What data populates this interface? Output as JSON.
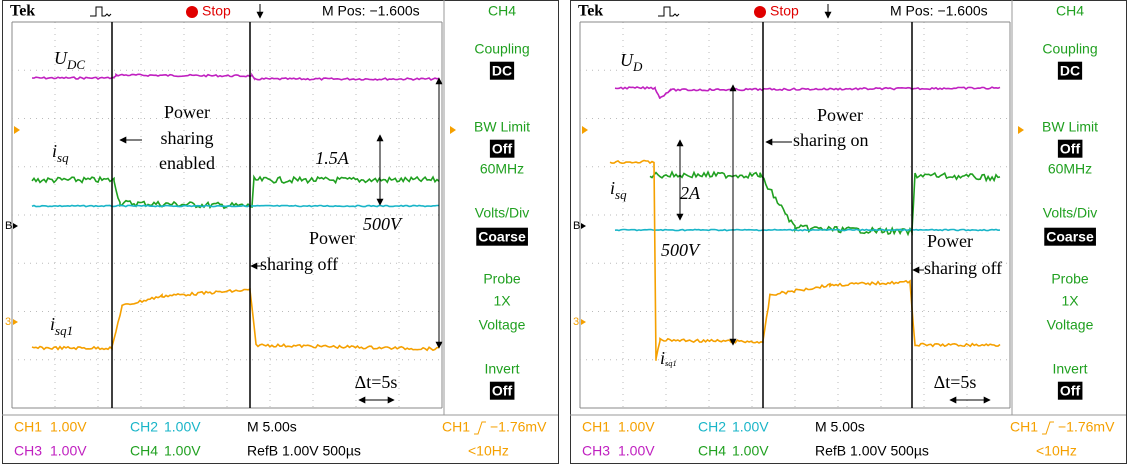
{
  "panels": [
    {
      "header": {
        "brand": "Tek",
        "status": "Stop",
        "position": "M Pos: −1.600s",
        "channel": "CH4"
      },
      "menu": [
        {
          "text": "Coupling"
        },
        {
          "text": "DC",
          "boxed": true
        },
        {
          "text": "BW Limit"
        },
        {
          "text": "Off",
          "boxed": true
        },
        {
          "text": "60MHz"
        },
        {
          "text": "Volts/Div"
        },
        {
          "text": "Coarse",
          "boxed": true
        },
        {
          "text": "Probe"
        },
        {
          "text": "1X"
        },
        {
          "text": "Voltage"
        },
        {
          "text": "Invert"
        },
        {
          "text": "Off",
          "boxed": true
        }
      ],
      "markers": [
        "B",
        "3"
      ],
      "readouts": [
        {
          "text": "CH1",
          "color": "#f5a000"
        },
        {
          "text": "1.00V",
          "color": "#f5a000"
        },
        {
          "text": "CH2",
          "color": "#19b5c8"
        },
        {
          "text": "1.00V",
          "color": "#19b5c8"
        },
        {
          "text": "M 5.00s",
          "color": "#000000"
        },
        {
          "text": "CH1",
          "color": "#f5a000"
        },
        {
          "text": "−1.76mV",
          "color": "#f5a000"
        },
        {
          "text": "CH3",
          "color": "#c020c0"
        },
        {
          "text": "1.00V",
          "color": "#c020c0"
        },
        {
          "text": "CH4",
          "color": "#20a020"
        },
        {
          "text": "1.00V",
          "color": "#20a020"
        },
        {
          "text": "RefB 1.00V 500µs",
          "color": "#000000"
        },
        {
          "text": "<10Hz",
          "color": "#f5a000"
        }
      ],
      "annotations": [
        {
          "main": "U",
          "sub": "DC"
        },
        {
          "lines": [
            "Power",
            "sharing",
            "enabled"
          ]
        },
        {
          "main": "i",
          "sub": "sq"
        },
        {
          "lines": [
            "1.5A"
          ]
        },
        {
          "lines": [
            "500V"
          ]
        },
        {
          "lines": [
            "Power",
            "sharing off"
          ]
        },
        {
          "main": "i",
          "sub": "sq1"
        },
        {
          "lines": [
            "Δt=5s"
          ]
        }
      ]
    },
    {
      "header": {
        "brand": "Tek",
        "status": "Stop",
        "position": "M Pos: −1.600s",
        "channel": "CH4"
      },
      "menu": [
        {
          "text": "Coupling"
        },
        {
          "text": "DC",
          "boxed": true
        },
        {
          "text": "BW Limit"
        },
        {
          "text": "Off",
          "boxed": true
        },
        {
          "text": "60MHz"
        },
        {
          "text": "Volts/Div"
        },
        {
          "text": "Coarse",
          "boxed": true
        },
        {
          "text": "Probe"
        },
        {
          "text": "1X"
        },
        {
          "text": "Voltage"
        },
        {
          "text": "Invert"
        },
        {
          "text": "Off",
          "boxed": true
        }
      ],
      "markers": [
        "B",
        "3"
      ],
      "readouts": [
        {
          "text": "CH1",
          "color": "#f5a000"
        },
        {
          "text": "1.00V",
          "color": "#f5a000"
        },
        {
          "text": "CH2",
          "color": "#19b5c8"
        },
        {
          "text": "1.00V",
          "color": "#19b5c8"
        },
        {
          "text": "M 5.00s",
          "color": "#000000"
        },
        {
          "text": "CH1",
          "color": "#f5a000"
        },
        {
          "text": "−1.76mV",
          "color": "#f5a000"
        },
        {
          "text": "CH3",
          "color": "#c020c0"
        },
        {
          "text": "1.00V",
          "color": "#c020c0"
        },
        {
          "text": "CH4",
          "color": "#20a020"
        },
        {
          "text": "1.00V",
          "color": "#20a020"
        },
        {
          "text": "RefB 1.00V 500µs",
          "color": "#000000"
        },
        {
          "text": "<10Hz",
          "color": "#f5a000"
        }
      ],
      "annotations": [
        {
          "main": "U",
          "sub": "D"
        },
        {
          "lines": [
            "Power",
            "sharing on"
          ]
        },
        {
          "main": "i",
          "sub": "sq"
        },
        {
          "lines": [
            "2A"
          ]
        },
        {
          "lines": [
            "500V"
          ]
        },
        {
          "lines": [
            "Power",
            "sharing off"
          ]
        },
        {
          "main": "i",
          "sub": "sq1"
        },
        {
          "lines": [
            "Δt=5s"
          ]
        }
      ]
    }
  ]
}
